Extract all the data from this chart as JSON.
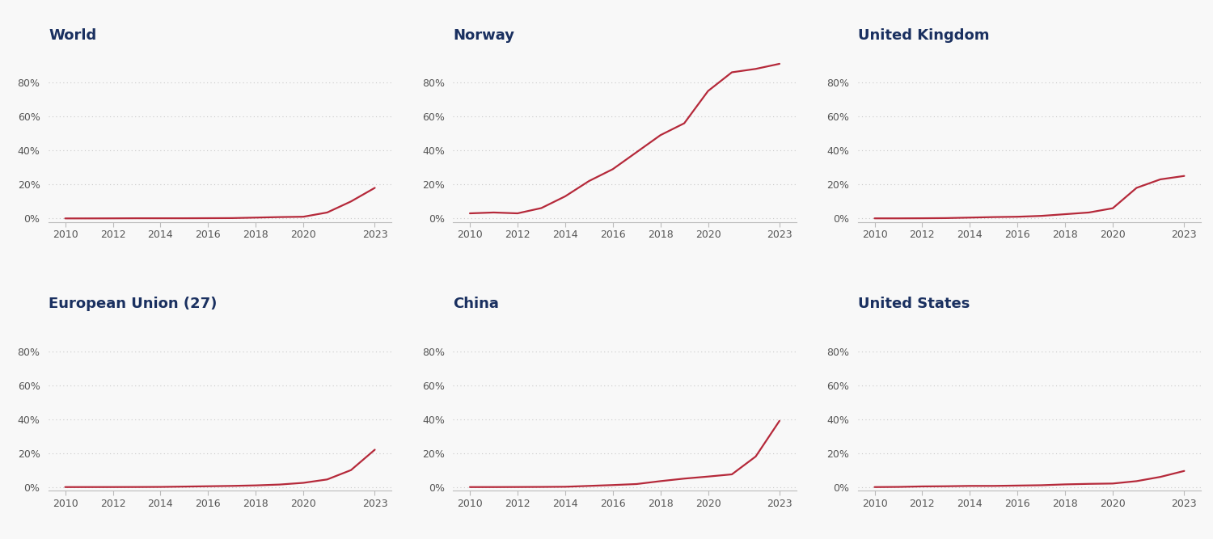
{
  "subplots": [
    {
      "title": "World",
      "years": [
        2010,
        2011,
        2012,
        2013,
        2014,
        2015,
        2016,
        2017,
        2018,
        2019,
        2020,
        2021,
        2022,
        2023
      ],
      "values": [
        0.01,
        0.02,
        0.05,
        0.1,
        0.1,
        0.1,
        0.15,
        0.2,
        0.5,
        0.8,
        1.0,
        3.5,
        10.0,
        18.0
      ]
    },
    {
      "title": "Norway",
      "years": [
        2010,
        2011,
        2012,
        2013,
        2014,
        2015,
        2016,
        2017,
        2018,
        2019,
        2020,
        2021,
        2022,
        2023
      ],
      "values": [
        3.0,
        3.5,
        3.0,
        6.1,
        13.0,
        22.0,
        29.0,
        39.0,
        49.0,
        56.0,
        75.0,
        86.0,
        88.0,
        91.0
      ]
    },
    {
      "title": "United Kingdom",
      "years": [
        2010,
        2011,
        2012,
        2013,
        2014,
        2015,
        2016,
        2017,
        2018,
        2019,
        2020,
        2021,
        2022,
        2023
      ],
      "values": [
        0.05,
        0.05,
        0.1,
        0.2,
        0.5,
        0.8,
        1.0,
        1.5,
        2.5,
        3.5,
        6.0,
        18.0,
        23.0,
        25.0
      ]
    },
    {
      "title": "European Union (27)",
      "years": [
        2010,
        2011,
        2012,
        2013,
        2014,
        2015,
        2016,
        2017,
        2018,
        2019,
        2020,
        2021,
        2022,
        2023
      ],
      "values": [
        0.01,
        0.02,
        0.03,
        0.05,
        0.1,
        0.3,
        0.5,
        0.7,
        1.0,
        1.5,
        2.5,
        4.5,
        10.0,
        22.0
      ]
    },
    {
      "title": "China",
      "years": [
        2010,
        2011,
        2012,
        2013,
        2014,
        2015,
        2016,
        2017,
        2018,
        2019,
        2020,
        2021,
        2022,
        2023
      ],
      "values": [
        0.01,
        0.02,
        0.05,
        0.1,
        0.2,
        0.7,
        1.2,
        1.8,
        3.5,
        5.0,
        6.2,
        7.5,
        18.0,
        39.0
      ]
    },
    {
      "title": "United States",
      "years": [
        2010,
        2011,
        2012,
        2013,
        2014,
        2015,
        2016,
        2017,
        2018,
        2019,
        2020,
        2021,
        2022,
        2023
      ],
      "values": [
        0.01,
        0.1,
        0.4,
        0.5,
        0.7,
        0.7,
        0.9,
        1.1,
        1.6,
        1.9,
        2.1,
        3.5,
        6.0,
        9.5
      ]
    }
  ],
  "line_color": "#b5293a",
  "line_width": 1.6,
  "title_color": "#1a3060",
  "tick_color": "#555555",
  "grid_color": "#c8c8c8",
  "bg_color": "#f8f8f8",
  "yticks": [
    0,
    20,
    40,
    60,
    80
  ],
  "ylim": [
    -2,
    100
  ],
  "xticks": [
    2010,
    2012,
    2014,
    2016,
    2018,
    2020,
    2023
  ],
  "xlim": [
    2009.3,
    2023.7
  ],
  "title_fontsize": 13,
  "tick_fontsize": 9
}
